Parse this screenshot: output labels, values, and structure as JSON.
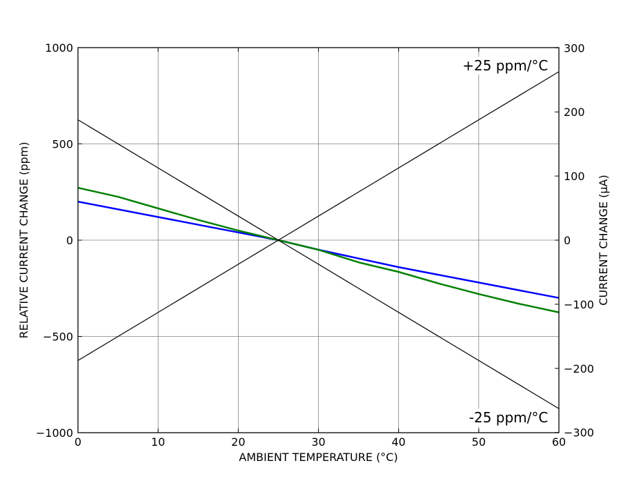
{
  "chart_data": {
    "type": "line",
    "xlabel": "AMBIENT TEMPERATURE (°C)",
    "ylabel": "RELATIVE CURRENT CHANGE (ppm)",
    "y2label": "CURRENT CHANGE (µA)",
    "xlim": [
      0,
      60
    ],
    "ylim": [
      -1000,
      1000
    ],
    "y2lim": [
      -300.3,
      300.3
    ],
    "grid": true,
    "x_ticks": [
      0,
      10,
      20,
      30,
      40,
      50,
      60
    ],
    "x_tick_labels": [
      "0",
      "10",
      "20",
      "30",
      "40",
      "50",
      "60"
    ],
    "y_ticks": [
      1000,
      500,
      0,
      -500,
      -1000
    ],
    "y_tick_labels": [
      "1000",
      "500",
      "0",
      "−500",
      "−1000"
    ],
    "y2_ticks": [
      300,
      200,
      100,
      0,
      -100,
      -200,
      -300
    ],
    "y2_tick_labels": [
      "300",
      "200",
      "100",
      "0",
      "−100",
      "−200",
      "−300"
    ],
    "series": [
      {
        "color": "#0000ff",
        "x": [
          0,
          10,
          20,
          25,
          30,
          40,
          50,
          60
        ],
        "y": [
          200,
          120,
          40,
          0,
          -50,
          -140,
          -220,
          -300
        ]
      },
      {
        "color": "#008000",
        "x": [
          0,
          5,
          10,
          15,
          20,
          25,
          30,
          35,
          40,
          45,
          50,
          55,
          60
        ],
        "y": [
          272,
          225,
          165,
          105,
          50,
          0,
          -50,
          -115,
          -165,
          -225,
          -280,
          -330,
          -375
        ]
      },
      {
        "color": "#000000",
        "x": [
          0,
          60
        ],
        "y": [
          -625,
          875
        ]
      },
      {
        "color": "#000000",
        "x": [
          0,
          60
        ],
        "y": [
          625,
          -875
        ]
      }
    ],
    "annotations": [
      {
        "text": "+25 ppm/°C",
        "x": 59,
        "y": 875
      },
      {
        "text": "-25 ppm/°C",
        "x": 59,
        "y": -875
      }
    ]
  }
}
